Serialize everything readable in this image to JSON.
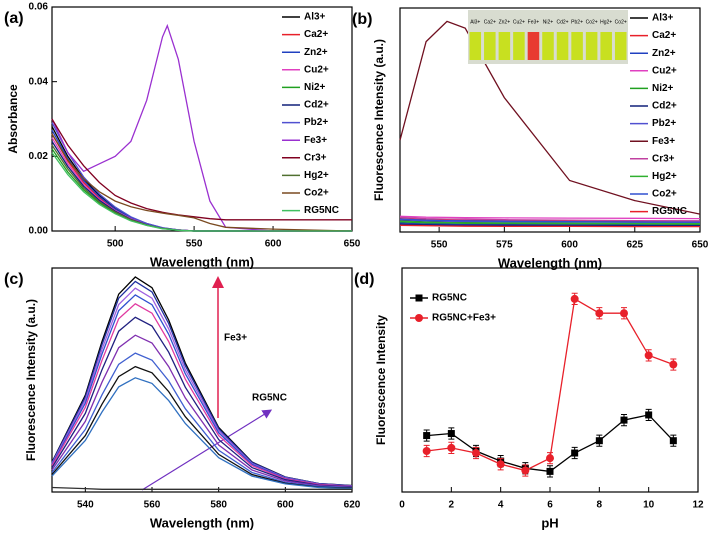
{
  "chart_data": [
    {
      "type": "line",
      "panel_label": "(a)",
      "xlabel": "Wavelength (nm)",
      "ylabel": "Absorbance",
      "xlim": [
        460,
        650
      ],
      "xticks": [
        500,
        550,
        600,
        650
      ],
      "ylim": [
        0,
        0.06
      ],
      "yticks": [
        {
          "value": 0,
          "label": "0.00"
        },
        {
          "value": 0.02,
          "label": "0.02"
        },
        {
          "value": 0.04,
          "label": "0.04"
        },
        {
          "value": 0.06,
          "label": "0.06"
        }
      ],
      "legend": "upper right",
      "x": [
        460,
        470,
        480,
        490,
        500,
        510,
        520,
        530,
        533,
        540,
        550,
        560,
        570,
        600,
        650
      ],
      "series": [
        {
          "name": "Al3+",
          "color": "#000000",
          "values": [
            0.028,
            0.02,
            0.014,
            0.0095,
            0.006,
            0.0036,
            0.002,
            0.0008,
            0.0006,
            0.0003,
            0,
            0,
            0,
            0,
            0
          ]
        },
        {
          "name": "Ca2+",
          "color": "#e8202a",
          "values": [
            0.026,
            0.0187,
            0.013,
            0.0088,
            0.0057,
            0.0034,
            0.0018,
            0.0008,
            0.0006,
            0.0003,
            0,
            0,
            0,
            0,
            0
          ]
        },
        {
          "name": "Zn2+",
          "color": "#2040c0",
          "values": [
            0.027,
            0.0194,
            0.0135,
            0.0092,
            0.0059,
            0.0035,
            0.0019,
            0.0008,
            0.0007,
            0.0003,
            0,
            0,
            0,
            0,
            0
          ]
        },
        {
          "name": "Cu2+",
          "color": "#e040c0",
          "values": [
            0.025,
            0.018,
            0.0125,
            0.0085,
            0.0055,
            0.0033,
            0.0018,
            0.0008,
            0.0006,
            0.0003,
            0,
            0,
            0,
            0,
            0
          ]
        },
        {
          "name": "Ni2+",
          "color": "#20a020",
          "values": [
            0.022,
            0.0158,
            0.011,
            0.0075,
            0.0048,
            0.0029,
            0.0015,
            0.0007,
            0.0005,
            0.0002,
            0,
            0,
            0,
            0,
            0
          ]
        },
        {
          "name": "Cd2+",
          "color": "#10207a",
          "values": [
            0.024,
            0.0173,
            0.012,
            0.0082,
            0.0053,
            0.0031,
            0.0017,
            0.0007,
            0.0006,
            0.0002,
            0,
            0,
            0,
            0,
            0
          ]
        },
        {
          "name": "Pb2+",
          "color": "#5050d0",
          "values": [
            0.029,
            0.021,
            0.0145,
            0.0099,
            0.0064,
            0.0038,
            0.002,
            0.0009,
            0.0007,
            0.0003,
            0,
            0,
            0,
            0,
            0
          ]
        },
        {
          "name": "Fe3+",
          "color": "#9a30d0",
          "values": [
            0.03,
            0.021,
            0.016,
            0.018,
            0.02,
            0.024,
            0.035,
            0.052,
            0.055,
            0.046,
            0.024,
            0.008,
            0.001,
            0,
            0
          ]
        },
        {
          "name": "Cr3+",
          "color": "#800020",
          "values": [
            0.03,
            0.023,
            0.0175,
            0.013,
            0.0095,
            0.0075,
            0.006,
            0.005,
            0.0048,
            0.0043,
            0.0038,
            0.0033,
            0.003,
            0.003,
            0.003
          ]
        },
        {
          "name": "Hg2+",
          "color": "#507030",
          "values": [
            0.023,
            0.0166,
            0.0115,
            0.0078,
            0.0051,
            0.003,
            0.0016,
            0.0007,
            0.0006,
            0.0002,
            0,
            0,
            0,
            0,
            0
          ]
        },
        {
          "name": "Co2+",
          "color": "#7a4a20",
          "values": [
            0.026,
            0.019,
            0.014,
            0.0105,
            0.008,
            0.0065,
            0.0055,
            0.0048,
            0.0046,
            0.0042,
            0.0035,
            0.002,
            0.001,
            0.0005,
            0
          ]
        },
        {
          "name": "RG5NC",
          "color": "#40c060",
          "values": [
            0.021,
            0.0151,
            0.0105,
            0.0071,
            0.0046,
            0.0027,
            0.0015,
            0.0006,
            0.0005,
            0.0002,
            0,
            0,
            0,
            0,
            0
          ]
        }
      ]
    },
    {
      "type": "line",
      "panel_label": "(b)",
      "xlabel": "Wavelength (nm)",
      "ylabel": "Fluorescence Intensity (a.u.)",
      "xlim": [
        535,
        650
      ],
      "xticks": [
        550,
        575,
        600,
        625,
        650
      ],
      "ylim": [
        0,
        100
      ],
      "legend": "upper right",
      "inset_labels": [
        "Al3+",
        "Ca2+",
        "Zn2+",
        "Cu2+",
        "Fe3+",
        "Ni2+",
        "Cd2+",
        "Pb2+",
        "Co2+",
        "Hg2+",
        "Co2+"
      ],
      "inset_colors": [
        "#c8e020",
        "#c8e020",
        "#c8e020",
        "#c8e020",
        "#e83a30",
        "#c8e020",
        "#c8e020",
        "#c8e020",
        "#c8e020",
        "#c8e020",
        "#c8e020"
      ],
      "x": [
        535,
        545,
        553,
        560,
        575,
        600,
        625,
        650
      ],
      "series": [
        {
          "name": "Al3+",
          "color": "#000000",
          "values": [
            5,
            4.5,
            4.3,
            4.2,
            4,
            3.8,
            3.6,
            3.5
          ]
        },
        {
          "name": "Ca2+",
          "color": "#e8202a",
          "values": [
            6,
            5.5,
            5.3,
            5.2,
            5,
            4.8,
            4.6,
            4.5
          ]
        },
        {
          "name": "Zn2+",
          "color": "#2040c0",
          "values": [
            4,
            3.6,
            3.5,
            3.4,
            3.3,
            3.2,
            3.1,
            3
          ]
        },
        {
          "name": "Cu2+",
          "color": "#e040c0",
          "values": [
            7,
            6.6,
            6.5,
            6.4,
            6.3,
            6.2,
            6.1,
            6
          ]
        },
        {
          "name": "Ni2+",
          "color": "#20a020",
          "values": [
            4.5,
            4.1,
            4,
            3.9,
            3.8,
            3.7,
            3.6,
            3.5
          ]
        },
        {
          "name": "Cd2+",
          "color": "#10207a",
          "values": [
            3.5,
            3.2,
            3.1,
            3,
            3,
            2.9,
            2.8,
            2.8
          ]
        },
        {
          "name": "Pb2+",
          "color": "#5050d0",
          "values": [
            5.5,
            5,
            4.8,
            4.7,
            4.5,
            4.4,
            4.3,
            4.2
          ]
        },
        {
          "name": "Fe3+",
          "color": "#701020",
          "values": [
            41,
            85,
            94,
            91,
            60,
            23,
            14,
            8
          ]
        },
        {
          "name": "Cr3+",
          "color": "#c040a0",
          "values": [
            6.5,
            6,
            5.8,
            5.7,
            5.5,
            5.3,
            5.1,
            5
          ]
        },
        {
          "name": "Hg2+",
          "color": "#30b030",
          "values": [
            4.8,
            4.4,
            4.2,
            4.1,
            4,
            3.9,
            3.8,
            3.7
          ]
        },
        {
          "name": "Co2+",
          "color": "#3050d0",
          "values": [
            5.8,
            5.3,
            5.1,
            5,
            4.8,
            4.6,
            4.5,
            4.4
          ]
        },
        {
          "name": "RG5NC",
          "color": "#e8202a",
          "values": [
            3,
            2.8,
            2.7,
            2.6,
            2.5,
            2.5,
            2.4,
            2.4
          ]
        }
      ]
    },
    {
      "type": "line",
      "panel_label": "(c)",
      "xlabel": "Wavelength (nm)",
      "ylabel": "Fluorescence Intensity (a.u.)",
      "xlim": [
        530,
        620
      ],
      "xticks": [
        540,
        560,
        580,
        600,
        620
      ],
      "ylim": [
        0,
        100
      ],
      "annotations": [
        "Fe3+",
        "RG5NC"
      ],
      "x": [
        530,
        540,
        545,
        550,
        555,
        560,
        565,
        570,
        580,
        590,
        600,
        610,
        620
      ],
      "series": [
        {
          "color": "#000000",
          "values": [
            13.4,
            43.2,
            67.2,
            88.3,
            96,
            91.2,
            76.8,
            57.6,
            28.8,
            13.4,
            6.7,
            3.8,
            2.9
          ]
        },
        {
          "color": "#2030a0",
          "values": [
            13.2,
            42.3,
            65.8,
            86.5,
            94,
            89.3,
            75.2,
            56.4,
            28.2,
            13.2,
            6.6,
            3.8,
            2.8
          ]
        },
        {
          "color": "#a060e0",
          "values": [
            12.7,
            41,
            63.7,
            83.7,
            91,
            86.5,
            72.8,
            54.6,
            27.3,
            12.7,
            6.4,
            3.6,
            2.7
          ]
        },
        {
          "color": "#3050d0",
          "values": [
            12.3,
            39.6,
            61.6,
            81,
            88,
            83.6,
            70.4,
            52.8,
            26.4,
            12.3,
            6.2,
            3.5,
            2.6
          ]
        },
        {
          "color": "#e03aa0",
          "values": [
            11.8,
            37.8,
            58.8,
            77.3,
            84,
            79.8,
            67.2,
            50.4,
            25.2,
            11.8,
            5.9,
            3.4,
            2.5
          ]
        },
        {
          "color": "#202080",
          "values": [
            10.9,
            35.1,
            54.6,
            71.8,
            78,
            74.1,
            62.4,
            46.8,
            23.4,
            10.9,
            5.5,
            3.1,
            2.3
          ]
        },
        {
          "color": "#8030b0",
          "values": [
            9.8,
            31.5,
            49,
            64.4,
            70,
            66.5,
            56,
            42,
            21,
            9.8,
            4.9,
            2.8,
            2.1
          ]
        },
        {
          "color": "#4060d0",
          "values": [
            8.7,
            27.9,
            43.4,
            57,
            62,
            58.9,
            49.6,
            37.2,
            18.6,
            8.7,
            4.3,
            2.5,
            1.9
          ]
        },
        {
          "color": "#101010",
          "values": [
            7.8,
            25.2,
            39.2,
            51.5,
            56,
            53.2,
            44.8,
            33.6,
            16.8,
            7.8,
            3.9,
            2.2,
            1.7
          ]
        },
        {
          "color": "#3070c0",
          "values": [
            7.1,
            23,
            35.7,
            46.9,
            51,
            48.5,
            40.8,
            30.6,
            15.3,
            7.1,
            3.6,
            2,
            1.5
          ]
        },
        {
          "color": "#303030",
          "values": [
            2,
            1.5,
            1.2,
            1.2,
            1.2,
            1.2,
            1.2,
            1.2,
            1.2,
            1.2,
            1.2,
            1.2,
            1.2
          ]
        }
      ]
    },
    {
      "type": "line",
      "panel_label": "(d)",
      "xlabel": "pH",
      "ylabel": "Fluorescence Intensity",
      "xlim": [
        0,
        12
      ],
      "xticks": [
        0,
        2,
        4,
        6,
        8,
        10,
        12
      ],
      "ylim": [
        0,
        100
      ],
      "legend": "upper left",
      "x": [
        1,
        2,
        3,
        4,
        5,
        6,
        7,
        8,
        9,
        10,
        11
      ],
      "series": [
        {
          "name": "RG5NC",
          "color": "#000000",
          "marker": "square",
          "values": [
            25.2,
            26.1,
            18.3,
            13.8,
            10.6,
            9.2,
            17.4,
            22.9,
            32.1,
            34.4,
            22.9
          ],
          "errors": [
            2.5,
            2.5,
            2.5,
            2.5,
            2.5,
            2.5,
            2.5,
            2.5,
            2.5,
            2.5,
            2.5
          ]
        },
        {
          "name": "RG5NC+Fe3+",
          "color": "#e8202a",
          "marker": "circle",
          "values": [
            18.3,
            19.7,
            17.4,
            12.4,
            9.6,
            15.1,
            86.2,
            79.8,
            79.8,
            61,
            56.9
          ],
          "errors": [
            2.5,
            2.5,
            2.5,
            2.5,
            2.5,
            2.5,
            2.5,
            2.5,
            2.5,
            2.5,
            2.5
          ]
        }
      ]
    }
  ]
}
